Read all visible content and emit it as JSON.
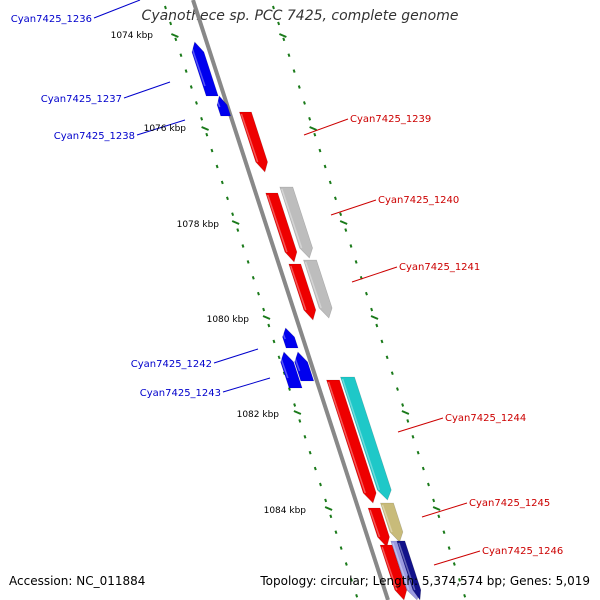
{
  "title": "Cyanothece sp. PCC 7425, complete genome",
  "footer": {
    "accession": "Accession: NC_011884",
    "summary": "Topology: circular; Length: 5,374,574 bp; Genes: 5,019"
  },
  "colors": {
    "backbone": "#808080",
    "minus_strand": "#0000ee",
    "plus_strand": "#ee0000",
    "tick": "#1a7a1a",
    "feature_gray": "#bdbdbd",
    "feature_cyan": "#1ec8c8",
    "feature_olive": "#c8bb7a",
    "feature_navy": "#12128a",
    "feature_lavender": "#9a9ae0"
  },
  "scale_labels": [
    "1074 kbp",
    "1076 kbp",
    "1078 kbp",
    "1080 kbp",
    "1082 kbp",
    "1084 kbp"
  ],
  "genes_minus": [
    "Cyan7425_1236",
    "Cyan7425_1237",
    "Cyan7425_1238",
    "Cyan7425_1242",
    "Cyan7425_1243"
  ],
  "genes_plus": [
    "Cyan7425_1239",
    "Cyan7425_1240",
    "Cyan7425_1241",
    "Cyan7425_1244",
    "Cyan7425_1245",
    "Cyan7425_1246"
  ]
}
